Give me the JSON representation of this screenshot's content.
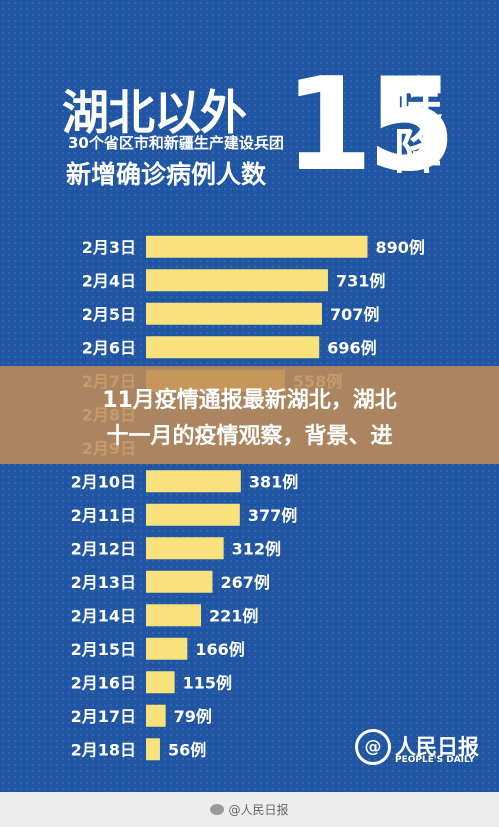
{
  "header": {
    "title": "湖北以外",
    "subtitle1": "30个省区市和新疆生产建设兵团",
    "subtitle2": "新增确诊病例人数",
    "big_number": "15",
    "vertical_text": "连降"
  },
  "banner": {
    "line1": "11月疫情通报最新湖北，湖北",
    "line2": "十一月的疫情观察，背景、进"
  },
  "logo": {
    "name_cn": "人民日报",
    "name_en": "PEOPLE'S DAILY",
    "symbol": "@"
  },
  "footer": {
    "watermark": "@人民日报"
  },
  "colors": {
    "background": "#1f55a3",
    "bar": "#f9e27c",
    "banner": "#be8c55"
  },
  "chart_data": {
    "type": "bar",
    "orientation": "horizontal",
    "categories": [
      "2月3日",
      "2月4日",
      "2月5日",
      "2月6日",
      "2月7日",
      "2月8日",
      "2月9日",
      "2月10日",
      "2月11日",
      "2月12日",
      "2月13日",
      "2月14日",
      "2月15日",
      "2月16日",
      "2月17日",
      "2月18日"
    ],
    "values": [
      890,
      731,
      707,
      696,
      558,
      null,
      null,
      381,
      377,
      312,
      267,
      221,
      166,
      115,
      79,
      56
    ],
    "labels": [
      "890例",
      "731例",
      "707例",
      "696例",
      "558例",
      "",
      "",
      "381例",
      "377例",
      "312例",
      "267例",
      "221例",
      "166例",
      "115例",
      "79例",
      "56例"
    ],
    "xlim": [
      0,
      900
    ]
  }
}
